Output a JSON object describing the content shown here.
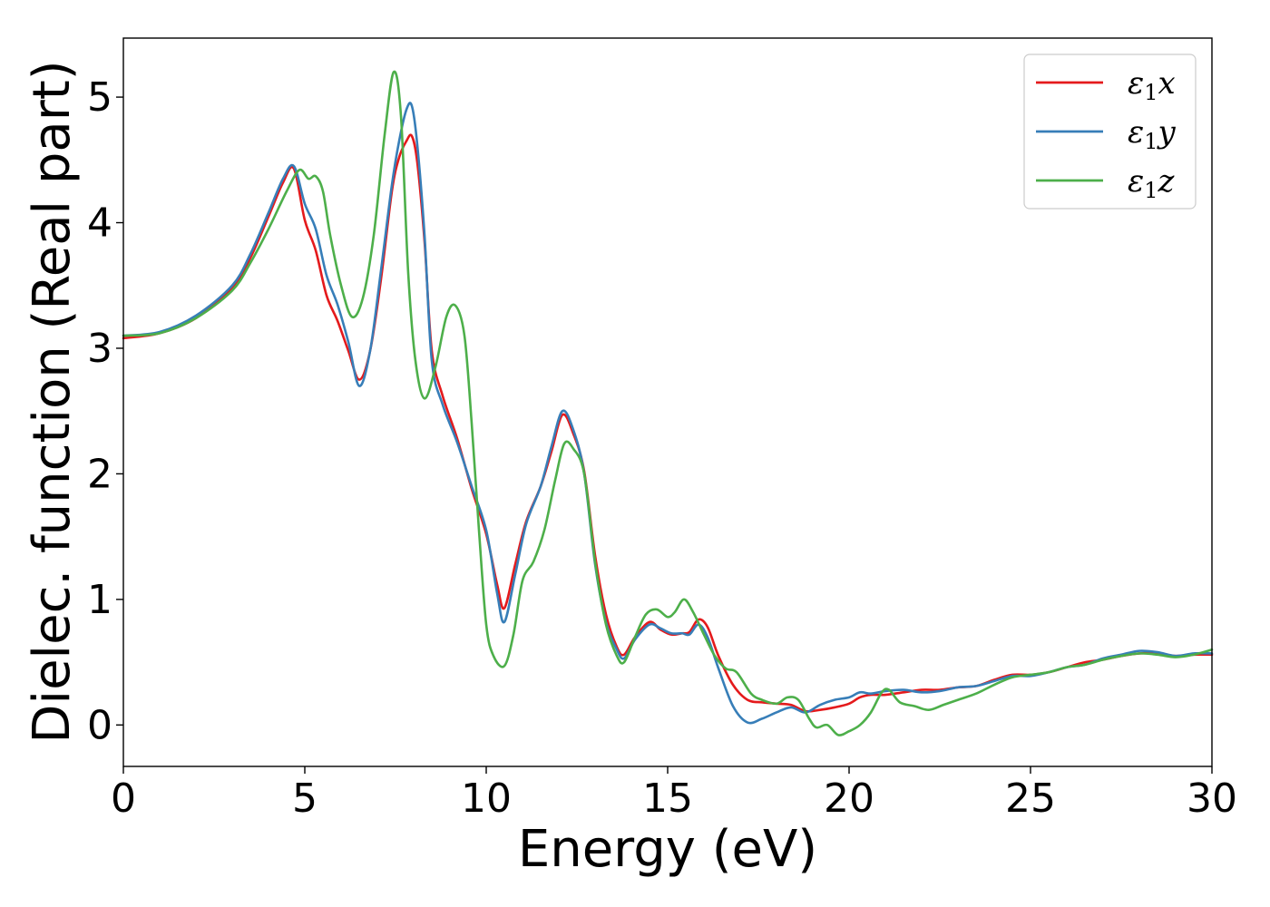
{
  "chart_data": {
    "type": "line",
    "xlabel": "Energy (eV)",
    "ylabel": "Dielec. function (Real part)",
    "xlim": [
      0,
      30
    ],
    "ylim": [
      -0.33,
      5.47
    ],
    "xticks": [
      0,
      5,
      10,
      15,
      20,
      25,
      30
    ],
    "yticks": [
      0,
      1,
      2,
      3,
      4,
      5
    ],
    "grid": false,
    "legend_position": "top-right",
    "series": [
      {
        "name": "ε₁x",
        "legend_base": "ε",
        "legend_sub": "1",
        "legend_var": "x",
        "color": "#e41a1c",
        "x": [
          0,
          1,
          2,
          3,
          3.5,
          4,
          4.4,
          4.7,
          5.0,
          5.3,
          5.6,
          5.9,
          6.2,
          6.5,
          6.8,
          7.1,
          7.4,
          7.6,
          7.8,
          7.95,
          8.1,
          8.3,
          8.5,
          8.8,
          9.2,
          9.6,
          10.0,
          10.3,
          10.5,
          10.8,
          11.1,
          11.5,
          11.8,
          12.1,
          12.4,
          12.7,
          13.0,
          13.3,
          13.6,
          13.8,
          14.1,
          14.5,
          14.8,
          15.1,
          15.4,
          15.6,
          15.85,
          16.1,
          16.4,
          16.8,
          17.2,
          17.6,
          18.0,
          18.4,
          18.8,
          19.2,
          19.6,
          20.0,
          20.3,
          20.6,
          21.0,
          21.5,
          22.0,
          22.5,
          23.0,
          23.5,
          24.0,
          24.5,
          25.0,
          25.5,
          26.0,
          26.5,
          27.0,
          27.5,
          28.0,
          28.5,
          29.0,
          29.5,
          30.0
        ],
        "y": [
          3.08,
          3.12,
          3.24,
          3.48,
          3.72,
          4.05,
          4.32,
          4.43,
          4.02,
          3.78,
          3.42,
          3.22,
          2.98,
          2.75,
          2.98,
          3.55,
          4.25,
          4.52,
          4.65,
          4.69,
          4.48,
          3.85,
          2.98,
          2.62,
          2.28,
          1.88,
          1.52,
          1.12,
          0.93,
          1.28,
          1.62,
          1.9,
          2.18,
          2.47,
          2.32,
          2.02,
          1.35,
          0.88,
          0.62,
          0.56,
          0.7,
          0.82,
          0.76,
          0.72,
          0.73,
          0.74,
          0.84,
          0.78,
          0.55,
          0.32,
          0.2,
          0.18,
          0.17,
          0.16,
          0.11,
          0.12,
          0.14,
          0.17,
          0.22,
          0.24,
          0.24,
          0.26,
          0.28,
          0.28,
          0.3,
          0.31,
          0.36,
          0.4,
          0.4,
          0.42,
          0.46,
          0.5,
          0.52,
          0.55,
          0.57,
          0.57,
          0.55,
          0.56,
          0.56
        ]
      },
      {
        "name": "ε₁y",
        "legend_base": "ε",
        "legend_sub": "1",
        "legend_var": "y",
        "color": "#377eb8",
        "x": [
          0,
          1,
          2,
          3,
          3.5,
          4,
          4.4,
          4.7,
          5.0,
          5.3,
          5.6,
          5.9,
          6.2,
          6.5,
          6.8,
          7.1,
          7.4,
          7.6,
          7.8,
          7.95,
          8.1,
          8.3,
          8.5,
          8.8,
          9.2,
          9.6,
          10.0,
          10.3,
          10.5,
          10.8,
          11.1,
          11.5,
          11.8,
          12.1,
          12.4,
          12.7,
          13.0,
          13.3,
          13.6,
          13.8,
          14.1,
          14.5,
          14.8,
          15.1,
          15.4,
          15.6,
          15.85,
          16.1,
          16.4,
          16.8,
          17.2,
          17.6,
          18.0,
          18.4,
          18.8,
          19.2,
          19.6,
          20.0,
          20.3,
          20.6,
          21.0,
          21.5,
          22.0,
          22.5,
          23.0,
          23.5,
          24.0,
          24.5,
          25.0,
          25.5,
          26.0,
          26.5,
          27.0,
          27.5,
          28.0,
          28.5,
          29.0,
          29.5,
          30.0
        ],
        "y": [
          3.1,
          3.13,
          3.26,
          3.5,
          3.75,
          4.08,
          4.35,
          4.45,
          4.15,
          3.95,
          3.58,
          3.35,
          3.05,
          2.7,
          2.98,
          3.62,
          4.3,
          4.65,
          4.9,
          4.93,
          4.62,
          3.9,
          2.9,
          2.55,
          2.25,
          1.9,
          1.55,
          1.05,
          0.82,
          1.2,
          1.6,
          1.9,
          2.22,
          2.5,
          2.35,
          2.0,
          1.28,
          0.82,
          0.6,
          0.53,
          0.68,
          0.8,
          0.77,
          0.73,
          0.73,
          0.72,
          0.8,
          0.7,
          0.45,
          0.15,
          0.02,
          0.05,
          0.1,
          0.14,
          0.1,
          0.16,
          0.2,
          0.22,
          0.26,
          0.25,
          0.27,
          0.28,
          0.26,
          0.27,
          0.3,
          0.31,
          0.35,
          0.39,
          0.39,
          0.42,
          0.46,
          0.48,
          0.53,
          0.56,
          0.59,
          0.58,
          0.55,
          0.57,
          0.57
        ]
      },
      {
        "name": "ε₁z",
        "legend_base": "ε",
        "legend_sub": "1",
        "legend_var": "z",
        "color": "#4daf4a",
        "x": [
          0,
          1,
          2,
          3,
          3.5,
          4,
          4.5,
          4.85,
          5.1,
          5.3,
          5.5,
          5.7,
          6.0,
          6.3,
          6.6,
          6.9,
          7.2,
          7.45,
          7.65,
          7.85,
          8.05,
          8.3,
          8.6,
          8.9,
          9.15,
          9.4,
          9.6,
          9.8,
          10.0,
          10.2,
          10.5,
          10.75,
          11.0,
          11.3,
          11.6,
          11.9,
          12.15,
          12.4,
          12.7,
          13.0,
          13.3,
          13.6,
          13.8,
          14.1,
          14.4,
          14.7,
          15.0,
          15.2,
          15.45,
          15.7,
          16.0,
          16.3,
          16.6,
          16.9,
          17.3,
          17.6,
          18.0,
          18.3,
          18.6,
          18.9,
          19.1,
          19.4,
          19.7,
          20.0,
          20.3,
          20.6,
          20.9,
          21.1,
          21.4,
          21.8,
          22.2,
          22.6,
          23.0,
          23.5,
          24.0,
          24.5,
          25.0,
          25.5,
          26.0,
          26.5,
          27.0,
          27.5,
          28.0,
          28.5,
          29.0,
          29.5,
          30.0
        ],
        "y": [
          3.1,
          3.12,
          3.24,
          3.46,
          3.68,
          3.95,
          4.25,
          4.42,
          4.35,
          4.37,
          4.25,
          3.9,
          3.5,
          3.25,
          3.4,
          3.9,
          4.7,
          5.2,
          4.85,
          3.6,
          2.9,
          2.6,
          2.85,
          3.25,
          3.34,
          3.1,
          2.4,
          1.55,
          0.8,
          0.55,
          0.47,
          0.72,
          1.15,
          1.3,
          1.55,
          1.95,
          2.24,
          2.2,
          2.0,
          1.3,
          0.8,
          0.55,
          0.5,
          0.7,
          0.88,
          0.92,
          0.86,
          0.9,
          1.0,
          0.9,
          0.72,
          0.55,
          0.45,
          0.42,
          0.25,
          0.2,
          0.17,
          0.22,
          0.2,
          0.05,
          -0.02,
          0.0,
          -0.08,
          -0.05,
          0.0,
          0.1,
          0.26,
          0.28,
          0.18,
          0.15,
          0.12,
          0.16,
          0.2,
          0.25,
          0.32,
          0.38,
          0.4,
          0.42,
          0.46,
          0.48,
          0.52,
          0.55,
          0.57,
          0.56,
          0.54,
          0.56,
          0.6
        ]
      }
    ]
  }
}
